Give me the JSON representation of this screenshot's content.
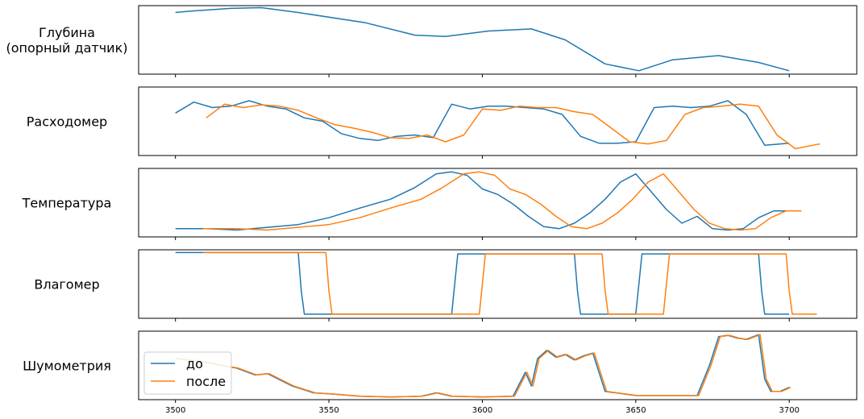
{
  "chart_data": {
    "type": "line",
    "xlim": [
      3488,
      3722
    ],
    "x_ticks": [
      3500,
      3550,
      3600,
      3650,
      3700
    ],
    "x_tick_labels": [
      "3500",
      "3550",
      "3600",
      "3650",
      "3700"
    ],
    "legend": {
      "position": "lower-left",
      "entries": [
        {
          "label": "до",
          "color": "#1f77b4"
        },
        {
          "label": "после",
          "color": "#ff7f0e"
        }
      ]
    },
    "panels": [
      {
        "label_lines": [
          "Глубина",
          "(опорный датчик)"
        ],
        "ylim": [
          0,
          1
        ],
        "series": [
          {
            "key": "до",
            "color": "#1f77b4",
            "x": [
              3500,
              3505,
              3518,
              3528,
              3540,
              3562,
              3578,
              3588,
              3602,
              3616,
              3627,
              3640,
              3651,
              3662,
              3677,
              3690,
              3700
            ],
            "y": [
              0.9,
              0.92,
              0.96,
              0.97,
              0.9,
              0.75,
              0.57,
              0.55,
              0.63,
              0.66,
              0.5,
              0.15,
              0.05,
              0.21,
              0.27,
              0.17,
              0.05
            ]
          }
        ]
      },
      {
        "label_lines": [
          "Расходомер"
        ],
        "ylim": [
          0,
          1
        ],
        "series": [
          {
            "key": "до",
            "color": "#1f77b4",
            "x": [
              3500,
              3506,
              3512,
              3518,
              3524,
              3530,
              3536,
              3542,
              3548,
              3554,
              3560,
              3566,
              3572,
              3578,
              3584,
              3590,
              3596,
              3602,
              3608,
              3614,
              3620,
              3626,
              3632,
              3638,
              3644,
              3650,
              3656,
              3662,
              3668,
              3674,
              3680,
              3686,
              3692,
              3700
            ],
            "y": [
              0.62,
              0.78,
              0.7,
              0.72,
              0.8,
              0.72,
              0.68,
              0.55,
              0.5,
              0.32,
              0.25,
              0.22,
              0.28,
              0.3,
              0.26,
              0.75,
              0.68,
              0.72,
              0.72,
              0.7,
              0.68,
              0.6,
              0.28,
              0.18,
              0.18,
              0.2,
              0.7,
              0.72,
              0.7,
              0.72,
              0.8,
              0.6,
              0.15,
              0.18
            ]
          },
          {
            "key": "после",
            "color": "#ff7f0e",
            "x": [
              3510,
              3516,
              3522,
              3528,
              3534,
              3540,
              3546,
              3552,
              3558,
              3564,
              3570,
              3576,
              3582,
              3588,
              3594,
              3600,
              3606,
              3612,
              3618,
              3624,
              3630,
              3636,
              3642,
              3648,
              3654,
              3660,
              3666,
              3672,
              3678,
              3684,
              3690,
              3696,
              3702,
              3710
            ],
            "y": [
              0.55,
              0.75,
              0.7,
              0.74,
              0.72,
              0.66,
              0.55,
              0.45,
              0.4,
              0.34,
              0.26,
              0.25,
              0.3,
              0.2,
              0.3,
              0.68,
              0.66,
              0.72,
              0.7,
              0.7,
              0.64,
              0.6,
              0.4,
              0.2,
              0.17,
              0.22,
              0.6,
              0.7,
              0.72,
              0.75,
              0.72,
              0.3,
              0.1,
              0.17
            ]
          }
        ]
      },
      {
        "label_lines": [
          "Температура"
        ],
        "ylim": [
          0,
          1
        ],
        "series": [
          {
            "key": "до",
            "color": "#1f77b4",
            "x": [
              3500,
              3510,
              3520,
              3530,
              3540,
              3550,
              3560,
              3570,
              3578,
              3585,
              3590,
              3595,
              3600,
              3605,
              3610,
              3615,
              3620,
              3625,
              3630,
              3635,
              3640,
              3645,
              3650,
              3655,
              3660,
              3665,
              3670,
              3675,
              3680,
              3685,
              3690,
              3695,
              3700
            ],
            "y": [
              0.12,
              0.12,
              0.1,
              0.14,
              0.18,
              0.28,
              0.42,
              0.55,
              0.72,
              0.92,
              0.95,
              0.9,
              0.7,
              0.62,
              0.48,
              0.3,
              0.15,
              0.12,
              0.2,
              0.35,
              0.55,
              0.8,
              0.92,
              0.66,
              0.4,
              0.2,
              0.3,
              0.12,
              0.1,
              0.12,
              0.28,
              0.38,
              0.38
            ]
          },
          {
            "key": "после",
            "color": "#ff7f0e",
            "x": [
              3509,
              3520,
              3530,
              3540,
              3550,
              3560,
              3570,
              3580,
              3587,
              3594,
              3599,
              3604,
              3609,
              3614,
              3619,
              3624,
              3629,
              3634,
              3639,
              3644,
              3649,
              3654,
              3659,
              3664,
              3669,
              3674,
              3679,
              3684,
              3689,
              3694,
              3699,
              3704
            ],
            "y": [
              0.12,
              0.12,
              0.1,
              0.14,
              0.18,
              0.28,
              0.42,
              0.55,
              0.72,
              0.92,
              0.95,
              0.9,
              0.7,
              0.62,
              0.48,
              0.3,
              0.15,
              0.12,
              0.2,
              0.35,
              0.55,
              0.8,
              0.92,
              0.66,
              0.4,
              0.2,
              0.12,
              0.1,
              0.12,
              0.28,
              0.38,
              0.38
            ]
          }
        ]
      },
      {
        "label_lines": [
          "Влагомер"
        ],
        "ylim": [
          0,
          1
        ],
        "series": [
          {
            "key": "до",
            "color": "#1f77b4",
            "x": [
              3500,
              3540,
              3541,
              3542,
              3590,
              3591,
              3592,
              3630,
              3631,
              3632,
              3650,
              3651,
              3652,
              3690,
              3691,
              3692,
              3700
            ],
            "y": [
              0.96,
              0.96,
              0.4,
              0.06,
              0.06,
              0.5,
              0.94,
              0.94,
              0.4,
              0.06,
              0.06,
              0.5,
              0.94,
              0.94,
              0.4,
              0.06,
              0.06
            ]
          },
          {
            "key": "после",
            "color": "#ff7f0e",
            "x": [
              3509,
              3549,
              3550,
              3551,
              3599,
              3600,
              3601,
              3639,
              3640,
              3641,
              3659,
              3660,
              3661,
              3699,
              3700,
              3701,
              3709
            ],
            "y": [
              0.96,
              0.96,
              0.4,
              0.06,
              0.06,
              0.5,
              0.94,
              0.94,
              0.4,
              0.06,
              0.06,
              0.5,
              0.94,
              0.94,
              0.4,
              0.06,
              0.06
            ]
          }
        ]
      },
      {
        "label_lines": [
          "Шумометрия"
        ],
        "ylim": [
          0,
          1
        ],
        "series": [
          {
            "key": "до",
            "color": "#1f77b4",
            "x": [
              3500,
              3508,
              3515,
              3520,
              3526,
              3530,
              3538,
              3545,
              3552,
              3560,
              3570,
              3580,
              3585,
              3590,
              3600,
              3610,
              3614,
              3616,
              3618,
              3621,
              3624,
              3627,
              3630,
              3633,
              3636,
              3640,
              3650,
              3660,
              3670,
              3674,
              3677,
              3680,
              3683,
              3686,
              3690,
              3692,
              3694,
              3697,
              3700
            ],
            "y": [
              0.6,
              0.56,
              0.5,
              0.46,
              0.36,
              0.38,
              0.2,
              0.1,
              0.08,
              0.05,
              0.04,
              0.05,
              0.1,
              0.05,
              0.04,
              0.05,
              0.4,
              0.2,
              0.6,
              0.72,
              0.62,
              0.66,
              0.58,
              0.64,
              0.68,
              0.12,
              0.06,
              0.06,
              0.06,
              0.5,
              0.92,
              0.94,
              0.9,
              0.88,
              0.95,
              0.3,
              0.12,
              0.12,
              0.18
            ]
          },
          {
            "key": "после",
            "color": "#ff7f0e",
            "x": [
              3500.5,
              3508.5,
              3515.5,
              3520.5,
              3526.5,
              3530.5,
              3538.5,
              3545.5,
              3552.5,
              3560.5,
              3570.5,
              3580.5,
              3585.5,
              3590.5,
              3600.5,
              3610.5,
              3614.5,
              3616.5,
              3618.5,
              3621.5,
              3624.5,
              3627.5,
              3630.5,
              3633.5,
              3636.5,
              3640.5,
              3650.5,
              3660.5,
              3670.5,
              3674.5,
              3677.5,
              3680.5,
              3683.5,
              3686.5,
              3690.5,
              3692.5,
              3694.5,
              3697.5,
              3700.5
            ],
            "y": [
              0.6,
              0.56,
              0.5,
              0.46,
              0.36,
              0.38,
              0.2,
              0.1,
              0.08,
              0.05,
              0.04,
              0.05,
              0.1,
              0.05,
              0.04,
              0.05,
              0.4,
              0.2,
              0.6,
              0.72,
              0.62,
              0.66,
              0.58,
              0.64,
              0.68,
              0.12,
              0.06,
              0.06,
              0.06,
              0.5,
              0.92,
              0.94,
              0.9,
              0.88,
              0.95,
              0.3,
              0.12,
              0.12,
              0.18
            ]
          }
        ]
      }
    ]
  }
}
